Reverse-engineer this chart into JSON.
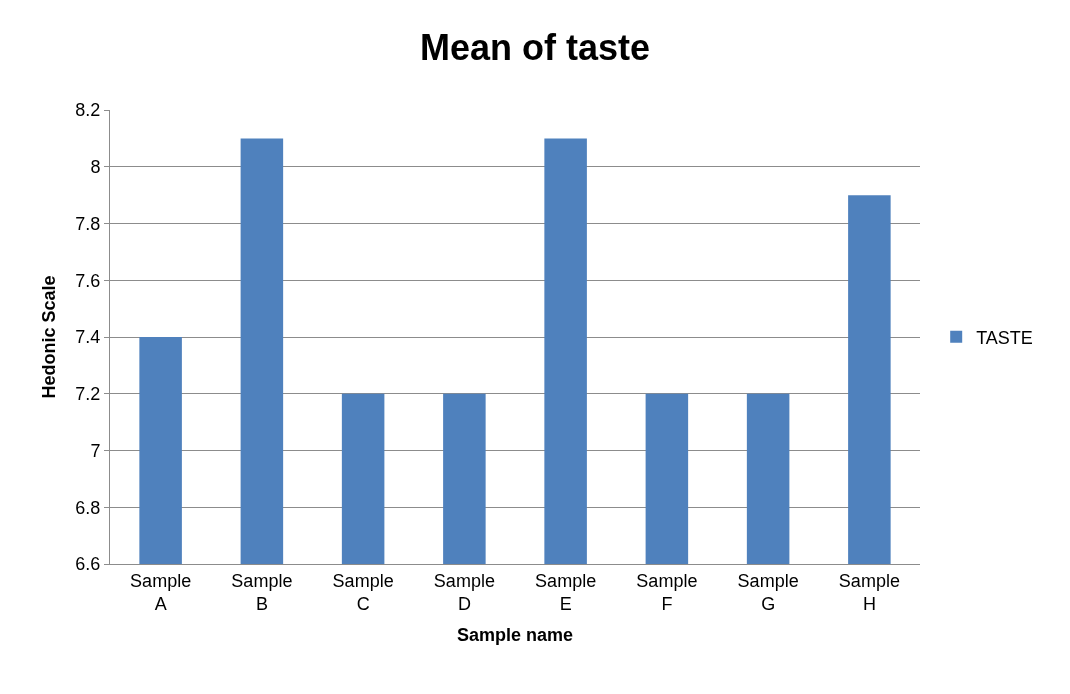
{
  "chart_data": {
    "type": "bar",
    "title": "Mean of taste",
    "xlabel": "Sample name",
    "ylabel": "Hedonic Scale",
    "categories": [
      "Sample A",
      "Sample B",
      "Sample C",
      "Sample D",
      "Sample E",
      "Sample F",
      "Sample G",
      "Sample H"
    ],
    "series": [
      {
        "name": "TASTE",
        "color": "#4f81bd",
        "values": [
          7.4,
          8.1,
          7.2,
          7.2,
          8.1,
          7.2,
          7.2,
          7.9
        ]
      }
    ],
    "ylim": [
      6.6,
      8.2
    ],
    "yticks": [
      6.6,
      6.8,
      7,
      7.2,
      7.4,
      7.6,
      7.8,
      8,
      8.2
    ],
    "grid": "y",
    "legend": "right"
  }
}
